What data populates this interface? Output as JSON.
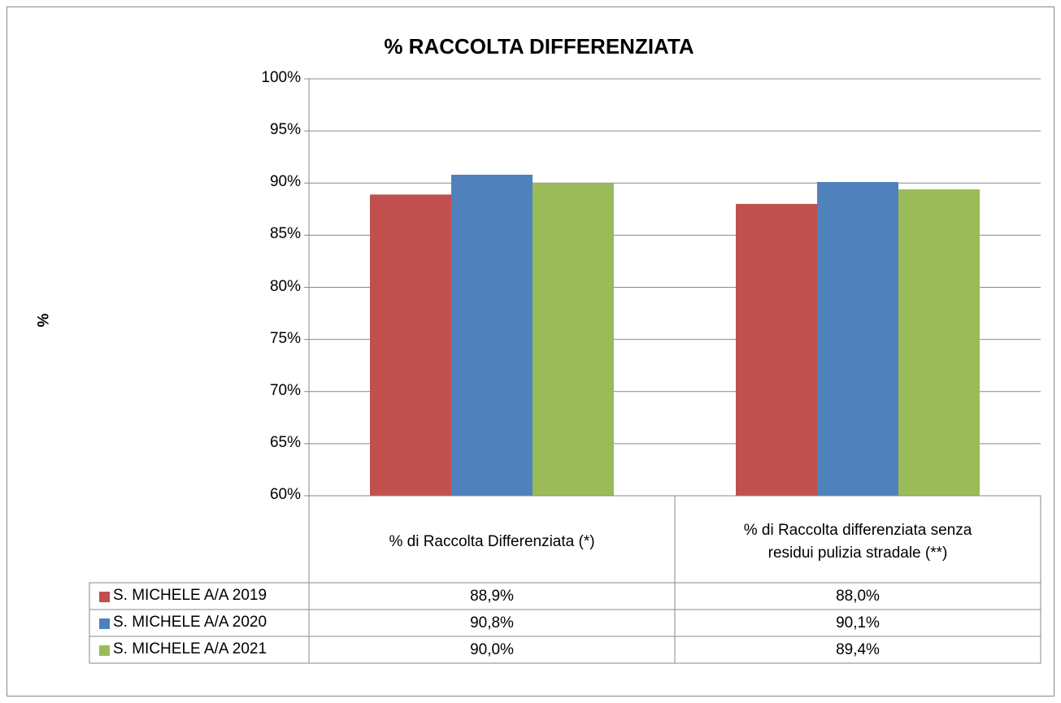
{
  "chart_data": {
    "type": "bar",
    "title": "% RACCOLTA DIFFERENZIATA",
    "y_label": "%",
    "categories": [
      "% di Raccolta Differenziata (*)",
      "% di Raccolta differenziata senza residui pulizia stradale (**)"
    ],
    "series": [
      {
        "name": "S. MICHELE A/A 2019",
        "color": "#c0504d",
        "values": [
          88.9,
          88.0
        ],
        "value_labels": [
          "88,9%",
          "88,0%"
        ]
      },
      {
        "name": "S. MICHELE A/A 2020",
        "color": "#4f81bd",
        "values": [
          90.8,
          90.1
        ],
        "value_labels": [
          "90,8%",
          "90,1%"
        ]
      },
      {
        "name": "S. MICHELE A/A 2021",
        "color": "#9bbb59",
        "values": [
          90.0,
          89.4
        ],
        "value_labels": [
          "90,0%",
          "89,4%"
        ]
      }
    ],
    "ylim": [
      60,
      100
    ],
    "yticks": [
      {
        "value": 60,
        "label": "60%"
      },
      {
        "value": 65,
        "label": "65%"
      },
      {
        "value": 70,
        "label": "70%"
      },
      {
        "value": 75,
        "label": "75%"
      },
      {
        "value": 80,
        "label": "80%"
      },
      {
        "value": 85,
        "label": "85%"
      },
      {
        "value": 90,
        "label": "90%"
      },
      {
        "value": 95,
        "label": "95%"
      },
      {
        "value": 100,
        "label": "100%"
      }
    ],
    "grid": true,
    "data_table": true
  }
}
